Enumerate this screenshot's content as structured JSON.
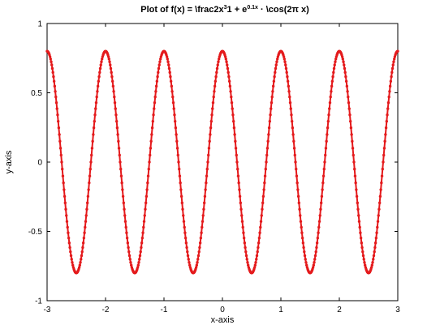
{
  "chart_data": {
    "type": "line",
    "title": {
      "prefix": "Plot of f(x) = \\frac2x",
      "sup1": "3",
      "middle": "1 + e",
      "sup2": "0.1x",
      "suffix": " · \\cos(2π x)"
    },
    "xlabel": "x-axis",
    "ylabel": "y-axis",
    "xlim": [
      -3,
      3
    ],
    "ylim": [
      -1,
      1
    ],
    "xticks": [
      {
        "value": -3,
        "label": "-3"
      },
      {
        "value": -2,
        "label": "-2"
      },
      {
        "value": -1,
        "label": "-1"
      },
      {
        "value": 0,
        "label": "0"
      },
      {
        "value": 1,
        "label": "1"
      },
      {
        "value": 2,
        "label": "2"
      },
      {
        "value": 3,
        "label": "3"
      }
    ],
    "yticks": [
      {
        "value": -1,
        "label": "-1"
      },
      {
        "value": -0.5,
        "label": "-0.5"
      },
      {
        "value": 0,
        "label": "0"
      },
      {
        "value": 0.5,
        "label": "0.5"
      },
      {
        "value": 1,
        "label": "1"
      }
    ],
    "grid": false,
    "series": [
      {
        "color": "#e41a1c",
        "marker": "dot",
        "amplitude": 0.8,
        "frequency": 1,
        "phase_offset": 0,
        "x_start": -3,
        "x_end": 3,
        "num_points": 601
      }
    ]
  }
}
